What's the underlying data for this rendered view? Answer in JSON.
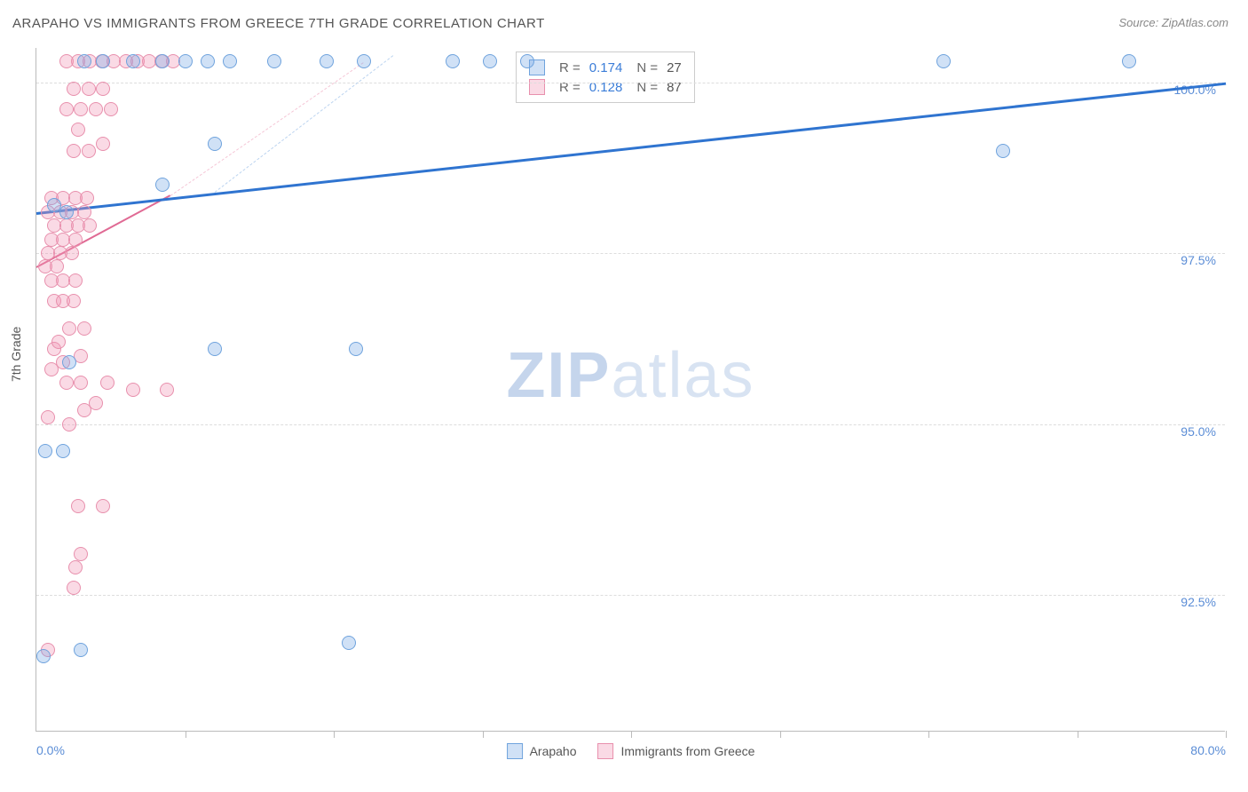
{
  "title": "ARAPAHO VS IMMIGRANTS FROM GREECE 7TH GRADE CORRELATION CHART",
  "source_label": "Source: ZipAtlas.com",
  "y_axis_label": "7th Grade",
  "watermark_bold": "ZIP",
  "watermark_light": "atlas",
  "chart": {
    "xlim": [
      0,
      80
    ],
    "ylim": [
      90.5,
      100.5
    ],
    "y_ticks": [
      92.5,
      95.0,
      97.5,
      100.0
    ],
    "y_tick_labels": [
      "92.5%",
      "95.0%",
      "97.5%",
      "100.0%"
    ],
    "x_ticks": [
      0,
      10,
      20,
      30,
      40,
      50,
      60,
      70,
      80
    ],
    "x_tick_labels": {
      "0": "0.0%",
      "80": "80.0%"
    },
    "marker_radius": 8,
    "marker_stroke_width": 1.5,
    "grid_color": "#e0e0e0",
    "background_color": "#ffffff"
  },
  "series_a": {
    "name": "Arapaho",
    "fill": "rgba(120,170,230,0.35)",
    "stroke": "#6fa3dd",
    "r_value": "0.174",
    "n_value": "27",
    "trend": {
      "x1": 0,
      "y1": 98.1,
      "x2": 80,
      "y2": 100.0,
      "color": "#2f74d0",
      "width": 2.5
    },
    "trend_ext": {
      "x1": 12,
      "y1": 98.4,
      "x2": 24,
      "y2": 100.4,
      "color": "#bcd4f0"
    },
    "points": [
      [
        0.5,
        91.6
      ],
      [
        3,
        91.7
      ],
      [
        21,
        91.8
      ],
      [
        0.6,
        94.6
      ],
      [
        1.8,
        94.6
      ],
      [
        2.2,
        95.9
      ],
      [
        12,
        96.1
      ],
      [
        21.5,
        96.1
      ],
      [
        2.0,
        98.1
      ],
      [
        1.2,
        98.2
      ],
      [
        8.5,
        98.5
      ],
      [
        12,
        99.1
      ],
      [
        3.2,
        100.3
      ],
      [
        4.5,
        100.3
      ],
      [
        6.5,
        100.3
      ],
      [
        8.5,
        100.3
      ],
      [
        10,
        100.3
      ],
      [
        11.5,
        100.3
      ],
      [
        13,
        100.3
      ],
      [
        16,
        100.3
      ],
      [
        19.5,
        100.3
      ],
      [
        22,
        100.3
      ],
      [
        28,
        100.3
      ],
      [
        30.5,
        100.3
      ],
      [
        33,
        100.3
      ],
      [
        61,
        100.3
      ],
      [
        73.5,
        100.3
      ],
      [
        65,
        99.0
      ]
    ]
  },
  "series_b": {
    "name": "Immigrants from Greece",
    "fill": "rgba(240,150,180,0.35)",
    "stroke": "#e890ad",
    "r_value": "0.128",
    "n_value": "87",
    "trend": {
      "x1": 0,
      "y1": 97.3,
      "x2": 9,
      "y2": 98.35,
      "color": "#e06a94",
      "width": 2
    },
    "trend_ext": {
      "x1": 9,
      "y1": 98.35,
      "x2": 22,
      "y2": 100.3,
      "color": "#f5c6d6"
    },
    "points": [
      [
        0.8,
        91.7
      ],
      [
        2.5,
        92.6
      ],
      [
        2.6,
        92.9
      ],
      [
        3.0,
        93.1
      ],
      [
        2.8,
        93.8
      ],
      [
        4.5,
        93.8
      ],
      [
        0.8,
        95.1
      ],
      [
        2.2,
        95.0
      ],
      [
        3.2,
        95.2
      ],
      [
        4.0,
        95.3
      ],
      [
        2.0,
        95.6
      ],
      [
        3.0,
        95.6
      ],
      [
        4.8,
        95.6
      ],
      [
        6.5,
        95.5
      ],
      [
        8.8,
        95.5
      ],
      [
        1.0,
        95.8
      ],
      [
        1.8,
        95.9
      ],
      [
        1.2,
        96.1
      ],
      [
        3.0,
        96.0
      ],
      [
        1.5,
        96.2
      ],
      [
        2.2,
        96.4
      ],
      [
        3.2,
        96.4
      ],
      [
        1.2,
        96.8
      ],
      [
        1.8,
        96.8
      ],
      [
        2.5,
        96.8
      ],
      [
        1.0,
        97.1
      ],
      [
        1.8,
        97.1
      ],
      [
        2.6,
        97.1
      ],
      [
        0.6,
        97.3
      ],
      [
        1.4,
        97.3
      ],
      [
        0.8,
        97.5
      ],
      [
        1.6,
        97.5
      ],
      [
        2.4,
        97.5
      ],
      [
        1.0,
        97.7
      ],
      [
        1.8,
        97.7
      ],
      [
        2.6,
        97.7
      ],
      [
        1.2,
        97.9
      ],
      [
        2.0,
        97.9
      ],
      [
        2.8,
        97.9
      ],
      [
        3.6,
        97.9
      ],
      [
        0.8,
        98.1
      ],
      [
        1.6,
        98.1
      ],
      [
        2.4,
        98.1
      ],
      [
        3.2,
        98.1
      ],
      [
        1.0,
        98.3
      ],
      [
        1.8,
        98.3
      ],
      [
        2.6,
        98.3
      ],
      [
        3.4,
        98.3
      ],
      [
        2.5,
        99.0
      ],
      [
        3.5,
        99.0
      ],
      [
        4.5,
        99.1
      ],
      [
        2.8,
        99.3
      ],
      [
        2.0,
        99.6
      ],
      [
        3.0,
        99.6
      ],
      [
        4.0,
        99.6
      ],
      [
        5.0,
        99.6
      ],
      [
        2.5,
        99.9
      ],
      [
        3.5,
        99.9
      ],
      [
        4.5,
        99.9
      ],
      [
        2.0,
        100.3
      ],
      [
        2.8,
        100.3
      ],
      [
        3.6,
        100.3
      ],
      [
        4.4,
        100.3
      ],
      [
        5.2,
        100.3
      ],
      [
        6.0,
        100.3
      ],
      [
        6.8,
        100.3
      ],
      [
        7.6,
        100.3
      ],
      [
        8.4,
        100.3
      ],
      [
        9.2,
        100.3
      ]
    ]
  },
  "stats_labels": {
    "r": "R =",
    "n": "N ="
  },
  "legend": {
    "a": "Arapaho",
    "b": "Immigrants from Greece"
  }
}
